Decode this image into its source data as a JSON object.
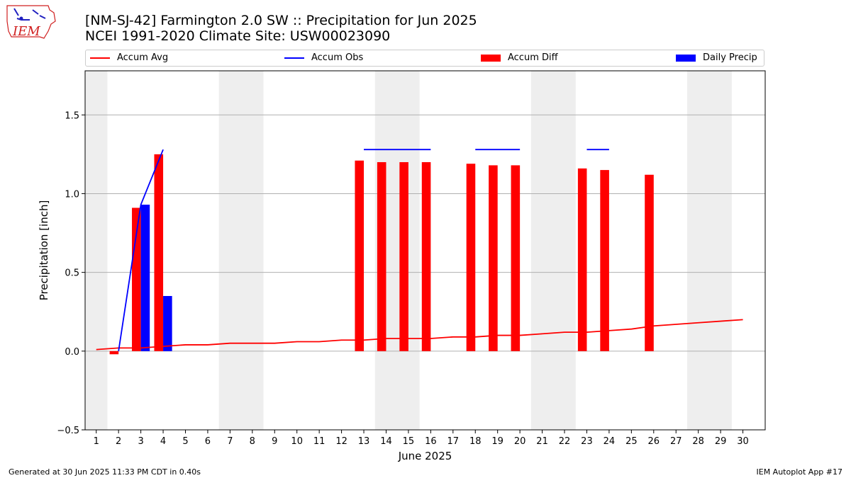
{
  "header": {
    "title_line1": "[NM-SJ-42] Farmington 2.0 SW :: Precipitation for Jun 2025",
    "title_line2": "NCEI 1991-2020 Climate Site: USW00023090",
    "logo_text": "IEM"
  },
  "legend": {
    "items": [
      {
        "label": "Accum Avg",
        "color": "#ff0000",
        "kind": "line"
      },
      {
        "label": "Accum Obs",
        "color": "#0000ff",
        "kind": "line"
      },
      {
        "label": "Accum Diff",
        "color": "#ff0000",
        "kind": "bar"
      },
      {
        "label": "Daily Precip",
        "color": "#0000ff",
        "kind": "bar"
      }
    ]
  },
  "footer": {
    "generated": "Generated at 30 Jun 2025 11:33 PM CDT in 0.40s",
    "app": "IEM Autoplot App #17"
  },
  "chart_data": {
    "type": "bar",
    "xlabel": "June 2025",
    "ylabel": "Precipitation [inch]",
    "xlim": [
      0.5,
      31.0
    ],
    "ylim": [
      -0.5,
      1.78
    ],
    "yticks": [
      -0.5,
      0.0,
      0.5,
      1.0,
      1.5
    ],
    "ytick_labels": [
      "−0.5",
      "0.0",
      "0.5",
      "1.0",
      "1.5"
    ],
    "xticks": [
      1,
      2,
      3,
      4,
      5,
      6,
      7,
      8,
      9,
      10,
      11,
      12,
      13,
      14,
      15,
      16,
      17,
      18,
      19,
      20,
      21,
      22,
      23,
      24,
      25,
      26,
      27,
      28,
      29,
      30
    ],
    "grid": "horizontal",
    "weekend_shading": [
      [
        0.5,
        1.5
      ],
      [
        6.5,
        8.5
      ],
      [
        13.5,
        15.5
      ],
      [
        20.5,
        22.5
      ],
      [
        27.5,
        29.5
      ]
    ],
    "colors": {
      "avg": "#ff0000",
      "obs": "#0000ff",
      "diff": "#ff0000",
      "daily": "#0000ff",
      "weekend": "#eeeeee",
      "grid": "#b0b0b0"
    },
    "series": [
      {
        "name": "Accum Avg",
        "type": "line",
        "x": [
          1,
          2,
          3,
          4,
          5,
          6,
          7,
          8,
          9,
          10,
          11,
          12,
          13,
          14,
          15,
          16,
          17,
          18,
          19,
          20,
          21,
          22,
          23,
          24,
          25,
          26,
          27,
          28,
          29,
          30
        ],
        "values": [
          0.01,
          0.02,
          0.02,
          0.03,
          0.04,
          0.04,
          0.05,
          0.05,
          0.05,
          0.06,
          0.06,
          0.07,
          0.07,
          0.08,
          0.08,
          0.08,
          0.09,
          0.09,
          0.1,
          0.1,
          0.11,
          0.12,
          0.12,
          0.13,
          0.14,
          0.16,
          0.17,
          0.18,
          0.19,
          0.2
        ]
      },
      {
        "name": "Accum Obs",
        "type": "line",
        "segments": [
          {
            "x": [
              2,
              3,
              4
            ],
            "values": [
              0.0,
              0.93,
              1.28
            ]
          },
          {
            "x": [
              13,
              14,
              15,
              16
            ],
            "values": [
              1.28,
              1.28,
              1.28,
              1.28
            ]
          },
          {
            "x": [
              18,
              19,
              20
            ],
            "values": [
              1.28,
              1.28,
              1.28
            ]
          },
          {
            "x": [
              23,
              24
            ],
            "values": [
              1.28,
              1.28
            ]
          }
        ]
      },
      {
        "name": "Accum Diff",
        "type": "bar",
        "x": [
          2,
          3,
          4,
          13,
          14,
          15,
          16,
          18,
          19,
          20,
          23,
          24,
          26
        ],
        "values": [
          -0.02,
          0.91,
          1.25,
          1.21,
          1.2,
          1.2,
          1.2,
          1.19,
          1.18,
          1.18,
          1.16,
          1.15,
          1.12
        ]
      },
      {
        "name": "Daily Precip",
        "type": "bar",
        "x": [
          3,
          4
        ],
        "values": [
          0.93,
          0.35
        ]
      }
    ]
  }
}
